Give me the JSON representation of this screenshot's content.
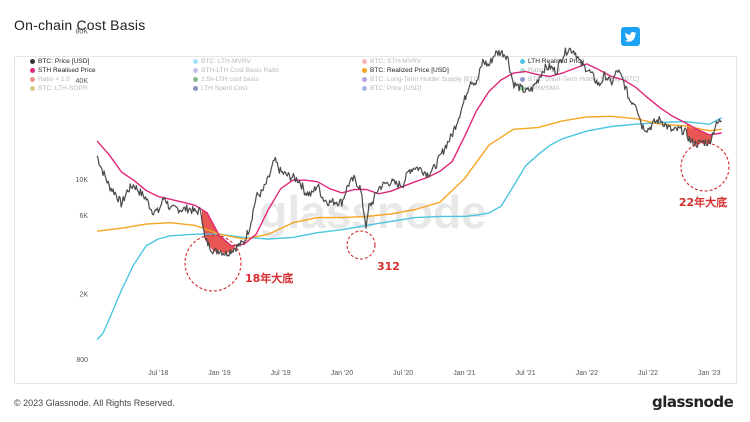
{
  "header": {
    "title": "On-chain Cost Basis"
  },
  "footer": {
    "copyright": "© 2023 Glassnode. All Rights Reserved.",
    "brand": "glassnode"
  },
  "watermark": "glassnode",
  "colors": {
    "price": "#4a4a4a",
    "sth": "#e0267a",
    "realized": "#f5a623",
    "lth": "#4cc6e0",
    "red": "#e53935"
  },
  "legend": [
    {
      "label": "BTC: Price [USD]",
      "color": "#333333",
      "active": true
    },
    {
      "label": "BTC: LTH-MVRV",
      "color": "#55ccee",
      "active": false
    },
    {
      "label": "BTC: STH-MVRV",
      "color": "#f08080",
      "active": false
    },
    {
      "label": "LTH Realised Price",
      "color": "#4cc6e0",
      "active": true
    },
    {
      "label": "STH Realised Price",
      "color": "#e0267a",
      "active": true
    },
    {
      "label": "STH-LTH Cost Basis Ratio",
      "color": "#9988dd",
      "active": false
    },
    {
      "label": "BTC: Realized Price [USD]",
      "color": "#f5a623",
      "active": true
    },
    {
      "label": "Ratio = 1.0",
      "color": "#66ccaa",
      "active": false
    },
    {
      "label": "Ratio < 1.0",
      "color": "#e53935",
      "active": false
    },
    {
      "label": "2.5x-LTH cost basis",
      "color": "#2e7d32",
      "active": false
    },
    {
      "label": "BTC: Long-Term Holder Supply [BTC]",
      "color": "#7e57c2",
      "active": false
    },
    {
      "label": "BTC: Short-Term Holder Supply [BTC]",
      "color": "#3949ab",
      "active": false
    },
    {
      "label": "BTC: LTH-SOPR",
      "color": "#b5a020",
      "active": false
    },
    {
      "label": "LTH Spent Cost",
      "color": "#283593",
      "active": false
    },
    {
      "label": "BTC: Price [USD]",
      "color": "#5c7fd6",
      "active": false
    },
    {
      "label": "200WSMA",
      "color": "#2e9d3e",
      "active": false
    }
  ],
  "annotations": [
    {
      "label": "18年大底",
      "date": 2018.95
    },
    {
      "label": "312",
      "date": 2020.2
    },
    {
      "label": "22年大底",
      "date": 2022.93
    }
  ],
  "chart_data": {
    "type": "line",
    "title": "On-chain Cost Basis",
    "y_scale": "log",
    "ylim": [
      800,
      90000
    ],
    "xlim": [
      2018.0,
      2023.12
    ],
    "y_ticks": [
      {
        "label": "800",
        "value": 800
      },
      {
        "label": "2K",
        "value": 2000
      },
      {
        "label": "6K",
        "value": 6000
      },
      {
        "label": "10K",
        "value": 10000
      },
      {
        "label": "40K",
        "value": 40000
      },
      {
        "label": "80K",
        "value": 80000
      }
    ],
    "x_ticks": [
      {
        "label": "Jul '18",
        "value": 2018.5
      },
      {
        "label": "Jan '19",
        "value": 2019.0
      },
      {
        "label": "Jul '19",
        "value": 2019.5
      },
      {
        "label": "Jan '20",
        "value": 2020.0
      },
      {
        "label": "Jul '20",
        "value": 2020.5
      },
      {
        "label": "Jan '21",
        "value": 2021.0
      },
      {
        "label": "Jul '21",
        "value": 2021.5
      },
      {
        "label": "Jan '22",
        "value": 2022.0
      },
      {
        "label": "Jul '22",
        "value": 2022.5
      },
      {
        "label": "Jan '23",
        "value": 2023.0
      }
    ],
    "series": [
      {
        "name": "BTC: Price [USD]",
        "key": "price",
        "x": [
          2018.0,
          2018.05,
          2018.1,
          2018.15,
          2018.2,
          2018.25,
          2018.3,
          2018.35,
          2018.4,
          2018.45,
          2018.5,
          2018.55,
          2018.6,
          2018.65,
          2018.7,
          2018.75,
          2018.8,
          2018.85,
          2018.88,
          2018.92,
          2018.96,
          2019.0,
          2019.05,
          2019.1,
          2019.15,
          2019.2,
          2019.25,
          2019.3,
          2019.35,
          2019.4,
          2019.45,
          2019.5,
          2019.55,
          2019.6,
          2019.65,
          2019.7,
          2019.75,
          2019.8,
          2019.85,
          2019.9,
          2019.95,
          2020.0,
          2020.05,
          2020.1,
          2020.15,
          2020.2,
          2020.22,
          2020.25,
          2020.3,
          2020.35,
          2020.4,
          2020.45,
          2020.5,
          2020.55,
          2020.6,
          2020.65,
          2020.7,
          2020.75,
          2020.8,
          2020.85,
          2020.9,
          2020.95,
          2021.0,
          2021.05,
          2021.1,
          2021.15,
          2021.2,
          2021.25,
          2021.3,
          2021.35,
          2021.4,
          2021.45,
          2021.5,
          2021.55,
          2021.6,
          2021.65,
          2021.7,
          2021.75,
          2021.8,
          2021.85,
          2021.9,
          2021.95,
          2022.0,
          2022.05,
          2022.1,
          2022.15,
          2022.2,
          2022.25,
          2022.3,
          2022.35,
          2022.4,
          2022.45,
          2022.5,
          2022.55,
          2022.6,
          2022.65,
          2022.7,
          2022.75,
          2022.8,
          2022.85,
          2022.9,
          2022.95,
          2023.0,
          2023.05,
          2023.1
        ],
        "y": [
          13800,
          11000,
          9000,
          8200,
          7000,
          8500,
          9200,
          8300,
          7600,
          6400,
          6300,
          7800,
          6500,
          6600,
          6500,
          6600,
          6300,
          6400,
          4300,
          3900,
          3600,
          3700,
          3500,
          3700,
          3900,
          4100,
          5200,
          7800,
          8300,
          10000,
          13000,
          11000,
          10500,
          10200,
          9800,
          8300,
          8000,
          9200,
          7500,
          7200,
          7300,
          7200,
          9200,
          10000,
          8800,
          5000,
          6800,
          7200,
          8800,
          9300,
          9600,
          9200,
          9300,
          11300,
          11800,
          11400,
          10700,
          11500,
          13500,
          16000,
          18500,
          23500,
          30000,
          40000,
          38000,
          52000,
          49000,
          58000,
          59000,
          56000,
          38000,
          36000,
          34000,
          35000,
          40000,
          47000,
          48000,
          45000,
          56000,
          62000,
          60000,
          50000,
          47000,
          42000,
          37000,
          43000,
          38000,
          46000,
          39000,
          30000,
          29000,
          21000,
          20000,
          22000,
          23000,
          21000,
          19500,
          20000,
          19500,
          16800,
          16300,
          16800,
          16600,
          21000,
          23000
        ]
      },
      {
        "name": "STH Realised Price",
        "key": "sth",
        "x": [
          2018.0,
          2018.1,
          2018.2,
          2018.3,
          2018.4,
          2018.5,
          2018.6,
          2018.7,
          2018.8,
          2018.9,
          2019.0,
          2019.1,
          2019.2,
          2019.3,
          2019.4,
          2019.5,
          2019.6,
          2019.7,
          2019.8,
          2019.9,
          2020.0,
          2020.1,
          2020.2,
          2020.3,
          2020.4,
          2020.5,
          2020.6,
          2020.7,
          2020.8,
          2020.9,
          2021.0,
          2021.1,
          2021.2,
          2021.3,
          2021.4,
          2021.5,
          2021.6,
          2021.7,
          2021.8,
          2021.9,
          2022.0,
          2022.1,
          2022.2,
          2022.3,
          2022.4,
          2022.5,
          2022.6,
          2022.7,
          2022.8,
          2022.9,
          2023.0,
          2023.1
        ],
        "y": [
          17000,
          14000,
          11000,
          9800,
          8500,
          7800,
          7500,
          7200,
          6900,
          6200,
          4500,
          3900,
          4000,
          4600,
          6500,
          8700,
          9800,
          9800,
          9600,
          8700,
          8200,
          8600,
          8600,
          8100,
          8400,
          9000,
          9600,
          10200,
          11100,
          12700,
          18000,
          26000,
          34000,
          40000,
          44000,
          45000,
          43000,
          42000,
          44000,
          47000,
          50000,
          46000,
          42000,
          40000,
          36000,
          31000,
          27000,
          24000,
          22000,
          20000,
          18500,
          19000
        ]
      },
      {
        "name": "BTC: Realized Price [USD]",
        "key": "realized",
        "x": [
          2018.0,
          2018.2,
          2018.4,
          2018.6,
          2018.8,
          2019.0,
          2019.2,
          2019.4,
          2019.6,
          2019.8,
          2020.0,
          2020.2,
          2020.4,
          2020.6,
          2020.8,
          2021.0,
          2021.2,
          2021.4,
          2021.6,
          2021.8,
          2022.0,
          2022.2,
          2022.4,
          2022.6,
          2022.8,
          2023.0,
          2023.1
        ],
        "y": [
          4800,
          5000,
          5300,
          5400,
          5200,
          4600,
          4300,
          4600,
          5400,
          5800,
          5800,
          5900,
          6100,
          6500,
          7200,
          10000,
          16000,
          20000,
          20500,
          22500,
          23800,
          24000,
          23200,
          21500,
          21000,
          19600,
          20000
        ]
      },
      {
        "name": "LTH Realised Price",
        "key": "lth",
        "x": [
          2018.0,
          2018.05,
          2018.1,
          2018.2,
          2018.3,
          2018.4,
          2018.5,
          2018.6,
          2018.8,
          2019.0,
          2019.2,
          2019.4,
          2019.6,
          2019.8,
          2020.0,
          2020.2,
          2020.4,
          2020.6,
          2020.8,
          2021.0,
          2021.1,
          2021.2,
          2021.3,
          2021.4,
          2021.5,
          2021.6,
          2021.7,
          2021.8,
          2021.9,
          2022.0,
          2022.2,
          2022.4,
          2022.6,
          2022.8,
          2023.0,
          2023.1
        ],
        "y": [
          1050,
          1150,
          1400,
          2100,
          3000,
          3900,
          4300,
          4500,
          4600,
          4600,
          4400,
          4300,
          4400,
          4700,
          4900,
          5200,
          5500,
          5800,
          5900,
          5900,
          6000,
          6200,
          6800,
          9000,
          12000,
          14000,
          16000,
          17500,
          18500,
          19500,
          20800,
          21500,
          22000,
          22300,
          21500,
          23500
        ]
      }
    ]
  }
}
